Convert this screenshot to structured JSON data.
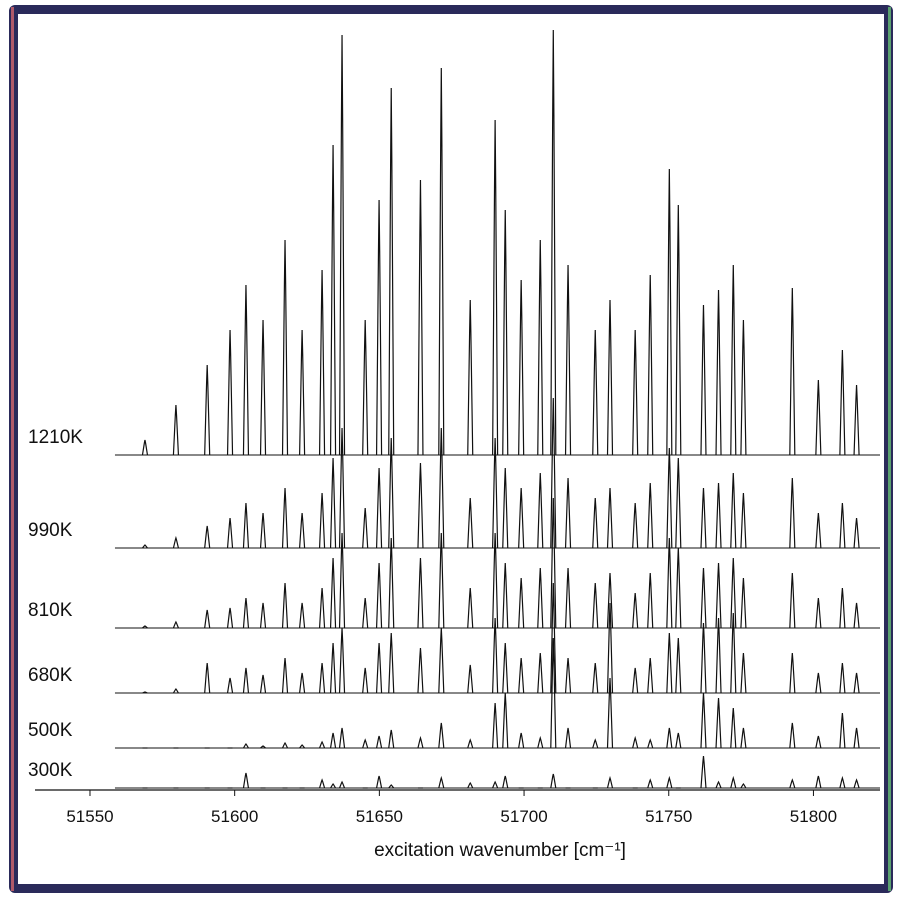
{
  "chart_data": {
    "type": "stacked-spectra",
    "x_label": "excitation wavenumber [cm⁻¹]",
    "xlim": [
      51531,
      51823
    ],
    "xticks": [
      51550,
      51600,
      51650,
      51700,
      51750,
      51800
    ],
    "x": [
      51569.0,
      51579.7,
      51590.5,
      51598.4,
      51603.9,
      51609.8,
      51617.4,
      51623.3,
      51630.2,
      51634.0,
      51637.1,
      51645.1,
      51649.9,
      51654.1,
      51664.2,
      51671.4,
      51681.4,
      51690.0,
      51693.5,
      51699.0,
      51705.6,
      51710.1,
      51715.2,
      51724.6,
      51729.7,
      51738.4,
      51743.6,
      51750.2,
      51753.3,
      51762.0,
      51767.2,
      51772.3,
      51775.8,
      51792.7,
      51801.7,
      51810.0,
      51814.9
    ],
    "series": [
      {
        "name": "1210K",
        "color": "#111111",
        "values": [
          15,
          50,
          90,
          125,
          170,
          135,
          215,
          125,
          185,
          310,
          420,
          135,
          255,
          367,
          275,
          387,
          155,
          335,
          245,
          175,
          215,
          425,
          190,
          125,
          155,
          125,
          180,
          286,
          250,
          150,
          165,
          190,
          135,
          167,
          75,
          105,
          70
        ]
      },
      {
        "name": "990K",
        "color": "#111111",
        "values": [
          3,
          10,
          22,
          30,
          45,
          35,
          60,
          35,
          55,
          90,
          120,
          40,
          80,
          110,
          85,
          120,
          50,
          110,
          80,
          60,
          75,
          150,
          70,
          50,
          60,
          45,
          65,
          100,
          90,
          60,
          65,
          75,
          55,
          70,
          35,
          45,
          30
        ]
      },
      {
        "name": "810K",
        "color": "#111111",
        "values": [
          2,
          6,
          18,
          20,
          30,
          25,
          45,
          25,
          40,
          70,
          95,
          30,
          65,
          90,
          70,
          95,
          40,
          95,
          65,
          50,
          60,
          130,
          60,
          45,
          55,
          35,
          55,
          90,
          80,
          60,
          65,
          70,
          50,
          55,
          30,
          40,
          25
        ]
      },
      {
        "name": "680K",
        "color": "#111111",
        "values": [
          1,
          4,
          30,
          15,
          25,
          18,
          35,
          20,
          30,
          50,
          65,
          25,
          50,
          60,
          45,
          65,
          28,
          75,
          50,
          35,
          40,
          110,
          35,
          30,
          90,
          25,
          35,
          60,
          55,
          70,
          75,
          80,
          40,
          40,
          20,
          30,
          20
        ]
      },
      {
        "name": "500K",
        "color": "#111111",
        "values": [
          0,
          0,
          0,
          0,
          4,
          2,
          5,
          3,
          6,
          15,
          20,
          8,
          12,
          18,
          10,
          25,
          8,
          45,
          55,
          15,
          10,
          110,
          20,
          8,
          70,
          10,
          8,
          20,
          15,
          55,
          50,
          40,
          20,
          25,
          12,
          35,
          20
        ]
      },
      {
        "name": "300K",
        "color": "#111111",
        "values": [
          0,
          0,
          0,
          0,
          15,
          0,
          0,
          0,
          8,
          4,
          6,
          0,
          12,
          3,
          0,
          10,
          5,
          6,
          12,
          0,
          0,
          14,
          0,
          0,
          10,
          0,
          8,
          10,
          0,
          32,
          6,
          10,
          4,
          8,
          12,
          10,
          8
        ]
      }
    ]
  }
}
